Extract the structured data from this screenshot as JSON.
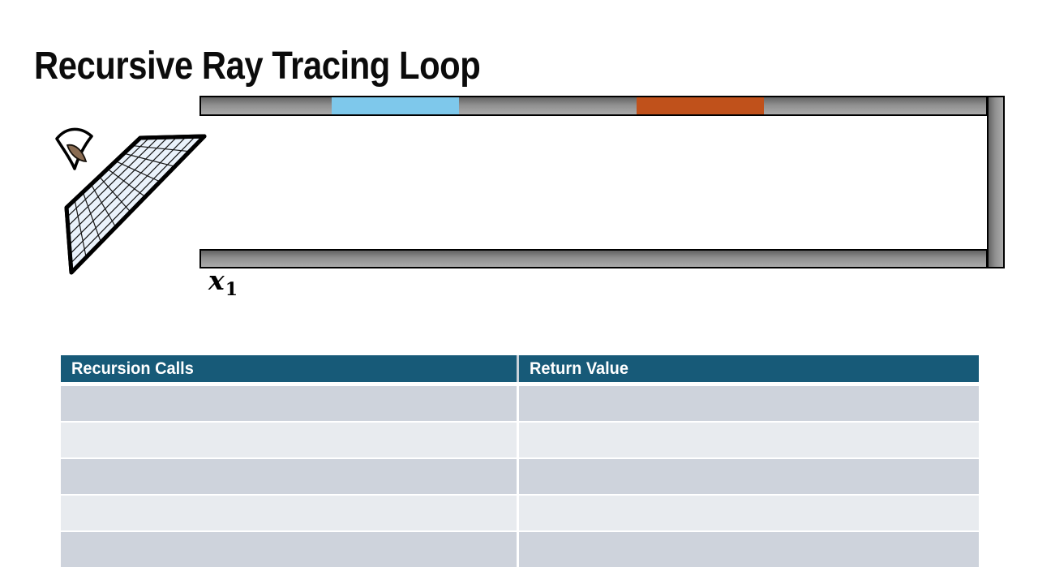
{
  "slide": {
    "title": "Recursive Ray Tracing Loop",
    "background": "#ffffff"
  },
  "scene": {
    "point_label": {
      "base": "x",
      "sub": "1"
    },
    "colors": {
      "wall_dark": "#636363",
      "wall_light": "#ababab",
      "blue_patch": "#7ec8eb",
      "orange_patch": "#c0511b",
      "plane_fill": "#eaf2fb",
      "eye_iris": "#8a6c52",
      "outline": "#000000"
    }
  },
  "table": {
    "headers": [
      "Recursion Calls",
      "Return Value"
    ],
    "rows": [
      [
        "",
        ""
      ],
      [
        "",
        ""
      ],
      [
        "",
        ""
      ],
      [
        "",
        ""
      ],
      [
        "",
        ""
      ]
    ],
    "colors": {
      "header_bg": "#175a78",
      "header_text": "#ffffff",
      "row_odd": "#ced3dc",
      "row_even": "#e8ebef",
      "divider": "#c9d1d9"
    }
  }
}
